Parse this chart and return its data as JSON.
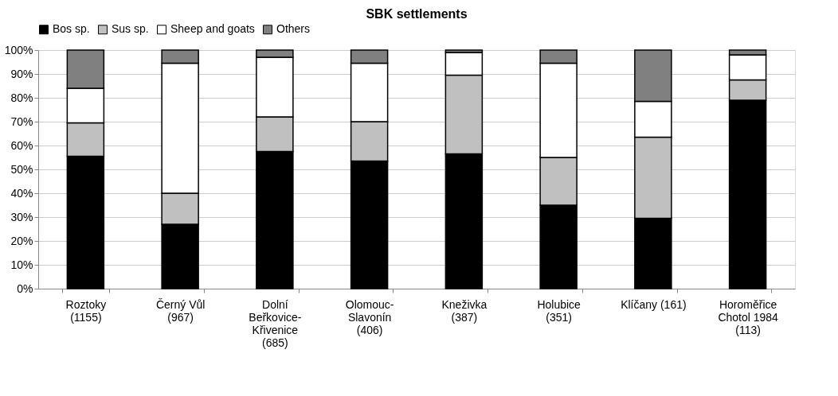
{
  "chart_data": {
    "type": "bar",
    "title": "SBK settlements",
    "stacked": true,
    "categories": [
      "Roztoky (1155)",
      "Černý Vůl (967)",
      "Dolní Beřkovice-Křivenice (685)",
      "Olomouc-Slavonín (406)",
      "Kneživka (387)",
      "Holubice (351)",
      "Klíčany (161)",
      "Horoměřice Chotol 1984 (113)"
    ],
    "series": [
      {
        "name": "Bos sp.",
        "color": "#000000",
        "values": [
          55.5,
          27,
          57.5,
          53.5,
          56.5,
          35,
          29.5,
          79
        ]
      },
      {
        "name": "Sus sp.",
        "color": "#c0c0c0",
        "values": [
          14,
          13,
          14.5,
          16.5,
          33,
          20,
          34,
          8.5
        ]
      },
      {
        "name": "Sheep and goats",
        "color": "#ffffff",
        "values": [
          14.5,
          54.5,
          25,
          24.5,
          9.5,
          39.5,
          15,
          10.5
        ]
      },
      {
        "name": "Others",
        "color": "#808080",
        "values": [
          16,
          5.5,
          3,
          5.5,
          1,
          5.5,
          21.5,
          2
        ]
      }
    ],
    "ylim": [
      0,
      100
    ],
    "yticks": [
      {
        "value": 0,
        "label": "0%"
      },
      {
        "value": 10,
        "label": "10%"
      },
      {
        "value": 20,
        "label": "20%"
      },
      {
        "value": 30,
        "label": "30%"
      },
      {
        "value": 40,
        "label": "40%"
      },
      {
        "value": 50,
        "label": "50%"
      },
      {
        "value": 60,
        "label": "60%"
      },
      {
        "value": 70,
        "label": "70%"
      },
      {
        "value": 80,
        "label": "80%"
      },
      {
        "value": 90,
        "label": "90%"
      },
      {
        "value": 100,
        "label": "100%"
      }
    ],
    "grid": "y",
    "legend": "top"
  }
}
